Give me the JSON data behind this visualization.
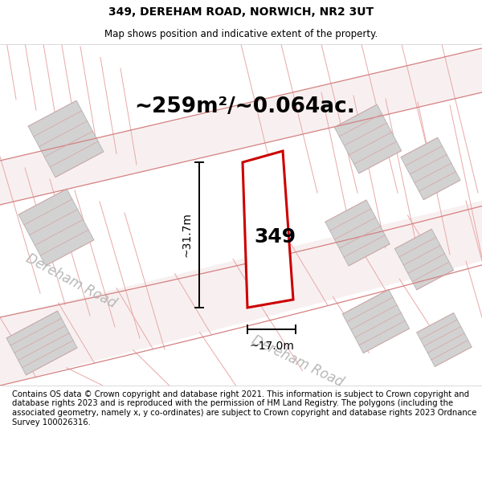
{
  "title": "349, DEREHAM ROAD, NORWICH, NR2 3UT",
  "subtitle": "Map shows position and indicative extent of the property.",
  "area_text": "~259m²/~0.064ac.",
  "label_349": "349",
  "dim_height": "~31.7m",
  "dim_width": "~17.0m",
  "road_label1": "Dereham Road",
  "road_label2": "Dereham Road",
  "copyright_text": "Contains OS data © Crown copyright and database right 2021. This information is subject to Crown copyright and database rights 2023 and is reproduced with the permission of HM Land Registry. The polygons (including the associated geometry, namely x, y co-ordinates) are subject to Crown copyright and database rights 2023 Ordnance Survey 100026316.",
  "title_fontsize": 10,
  "subtitle_fontsize": 8.5,
  "area_fontsize": 19,
  "road_fontsize": 12,
  "label_fontsize": 18,
  "copyright_fontsize": 7.2,
  "map_bg": "#ffffff",
  "building_color": "#d2d2d2",
  "building_edge": "#b8b8b8",
  "hatch_color": "#daa0a0",
  "road_fill": "#f7f0f0",
  "road_line_color": "#d48080",
  "prop_edge": "#cc0000",
  "dim_color": "#000000",
  "road_text_color": "#b8b8b8"
}
